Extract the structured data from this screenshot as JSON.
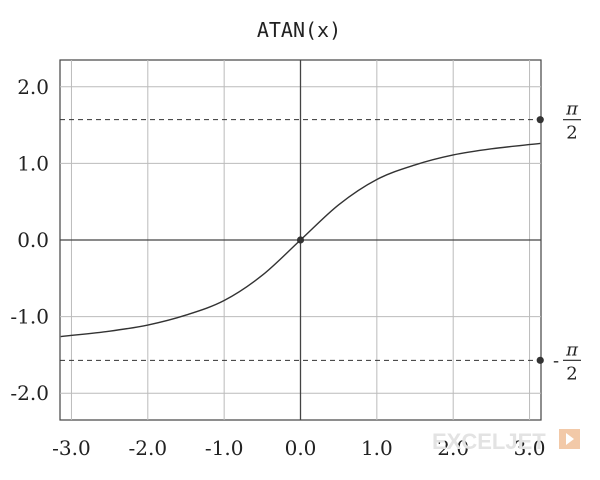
{
  "chart_data": {
    "type": "line",
    "title": "ATAN(x)",
    "xlabel": "",
    "ylabel": "",
    "xlim": [
      -3.15,
      3.15
    ],
    "ylim": [
      -2.35,
      2.35
    ],
    "grid": true,
    "x_ticks": [
      -3.0,
      -2.0,
      -1.0,
      0.0,
      1.0,
      2.0,
      3.0
    ],
    "x_tick_labels": [
      "-3.0",
      "-2.0",
      "-1.0",
      "0.0",
      "1.0",
      "2.0",
      "3.0"
    ],
    "y_ticks": [
      -2.0,
      -1.0,
      0.0,
      1.0,
      2.0
    ],
    "y_tick_labels": [
      "-2.0",
      "-1.0",
      "0.0",
      "1.0",
      "2.0"
    ],
    "series": [
      {
        "x": [
          -3.14,
          -2.5,
          -2.0,
          -1.5,
          -1.0,
          -0.5,
          0.0,
          0.5,
          1.0,
          1.5,
          2.0,
          2.5,
          3.14
        ],
        "y": [
          -1.26,
          -1.19,
          -1.11,
          -0.98,
          -0.79,
          -0.46,
          0.0,
          0.46,
          0.79,
          0.98,
          1.11,
          1.19,
          1.26
        ]
      }
    ],
    "points": [
      {
        "x": 0.0,
        "y": 0.0
      },
      {
        "x": 3.14,
        "y": 1.5708
      },
      {
        "x": 3.14,
        "y": -1.5708
      }
    ],
    "asymptotes": [
      {
        "y": 1.5708,
        "label": {
          "sign": "",
          "numerator": "π",
          "denominator": "2"
        }
      },
      {
        "y": -1.5708,
        "label": {
          "sign": "-",
          "numerator": "π",
          "denominator": "2"
        }
      }
    ]
  },
  "watermark": "EXCELJET",
  "colors": {
    "curve": "#333333",
    "grid": "#bbbbbb",
    "axis": "#444444",
    "watermark": "#e3e3e3",
    "watermark_accent": "#f2c9a8"
  }
}
